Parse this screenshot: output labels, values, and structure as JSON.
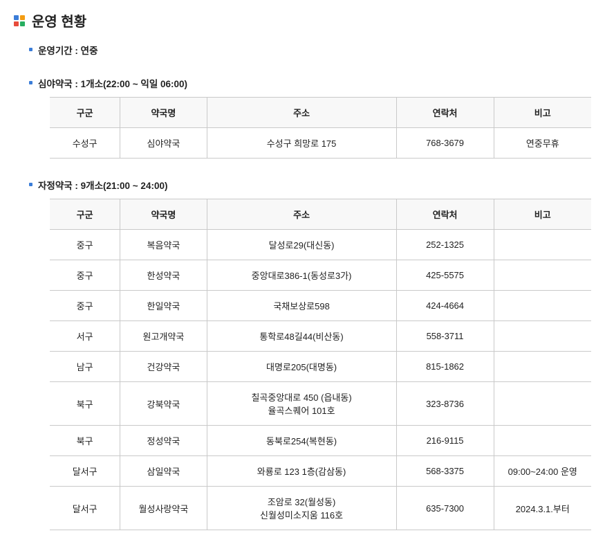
{
  "title": "운영 현황",
  "section_period": {
    "label": "운영기간 : 연중"
  },
  "section_night": {
    "label": "심야약국 : 1개소(22:00 ~ 익일 06:00)",
    "headers": {
      "district": "구군",
      "name": "약국명",
      "addr": "주소",
      "tel": "연락처",
      "note": "비고"
    },
    "rows": [
      {
        "district": "수성구",
        "name": "심야약국",
        "addr": "수성구 희망로 175",
        "tel": "768-3679",
        "note": "연중무휴"
      }
    ]
  },
  "section_midnight": {
    "label": "자정약국 : 9개소(21:00 ~ 24:00)",
    "headers": {
      "district": "구군",
      "name": "약국명",
      "addr": "주소",
      "tel": "연락처",
      "note": "비고"
    },
    "rows": [
      {
        "district": "중구",
        "name": "복음약국",
        "addr": "달성로29(대신동)",
        "tel": "252-1325",
        "note": ""
      },
      {
        "district": "중구",
        "name": "한성약국",
        "addr": "중앙대로386-1(동성로3가)",
        "tel": "425-5575",
        "note": ""
      },
      {
        "district": "중구",
        "name": "한일약국",
        "addr": "국채보상로598",
        "tel": "424-4664",
        "note": ""
      },
      {
        "district": "서구",
        "name": "원고개약국",
        "addr": "통학로48길44(비산동)",
        "tel": "558-3711",
        "note": ""
      },
      {
        "district": "남구",
        "name": "건강약국",
        "addr": "대명로205(대명동)",
        "tel": "815-1862",
        "note": ""
      },
      {
        "district": "북구",
        "name": "강북약국",
        "addr": "칠곡중앙대로 450 (읍내동)\n율곡스퀘어 101호",
        "tel": "323-8736",
        "note": ""
      },
      {
        "district": "북구",
        "name": "정성약국",
        "addr": "동북로254(복현동)",
        "tel": "216-9115",
        "note": ""
      },
      {
        "district": "달서구",
        "name": "삼일약국",
        "addr": "와룡로 123 1층(감삼동)",
        "tel": "568-3375",
        "note": "09:00~24:00 운영"
      },
      {
        "district": "달서구",
        "name": "월성사랑약국",
        "addr": "조암로 32(월성동)\n신월성미소지움 116호",
        "tel": "635-7300",
        "note": "2024.3.1.부터"
      }
    ]
  }
}
